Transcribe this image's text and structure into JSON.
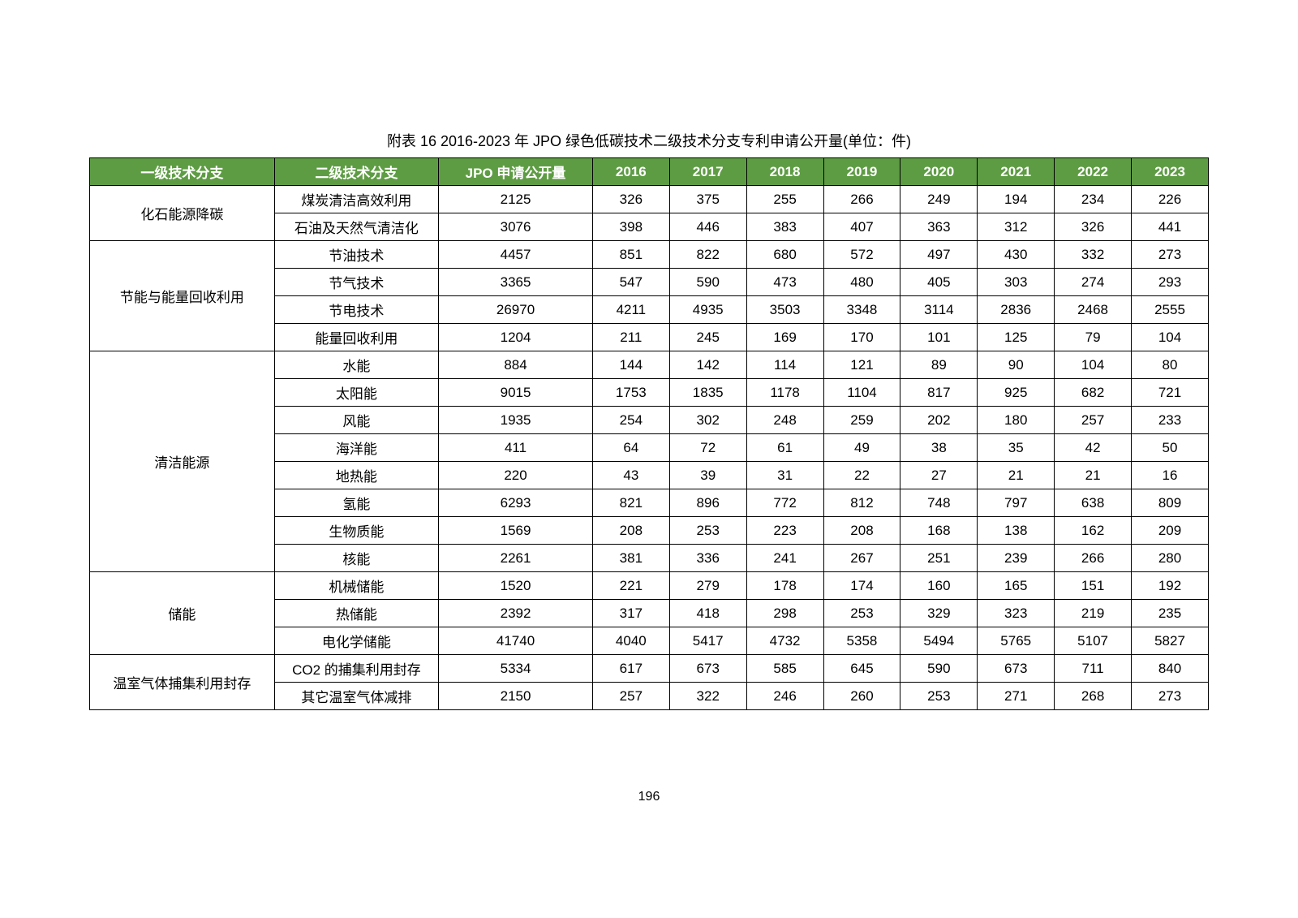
{
  "caption": "附表 16 2016-2023 年 JPO 绿色低碳技术二级技术分支专利申请公开量(单位：件)",
  "page_number": "196",
  "header_bg": "#5e9c44",
  "header_color": "#ffffff",
  "columns": [
    "一级技术分支",
    "二级技术分支",
    "JPO 申请公开量",
    "2016",
    "2017",
    "2018",
    "2019",
    "2020",
    "2021",
    "2022",
    "2023"
  ],
  "groups": [
    {
      "level1": "化石能源降碳",
      "rows": [
        {
          "level2": "煤炭清洁高效利用",
          "total": "2125",
          "values": [
            "326",
            "375",
            "255",
            "266",
            "249",
            "194",
            "234",
            "226"
          ]
        },
        {
          "level2": "石油及天然气清洁化",
          "total": "3076",
          "values": [
            "398",
            "446",
            "383",
            "407",
            "363",
            "312",
            "326",
            "441"
          ]
        }
      ]
    },
    {
      "level1": "节能与能量回收利用",
      "rows": [
        {
          "level2": "节油技术",
          "total": "4457",
          "values": [
            "851",
            "822",
            "680",
            "572",
            "497",
            "430",
            "332",
            "273"
          ]
        },
        {
          "level2": "节气技术",
          "total": "3365",
          "values": [
            "547",
            "590",
            "473",
            "480",
            "405",
            "303",
            "274",
            "293"
          ]
        },
        {
          "level2": "节电技术",
          "total": "26970",
          "values": [
            "4211",
            "4935",
            "3503",
            "3348",
            "3114",
            "2836",
            "2468",
            "2555"
          ]
        },
        {
          "level2": "能量回收利用",
          "total": "1204",
          "values": [
            "211",
            "245",
            "169",
            "170",
            "101",
            "125",
            "79",
            "104"
          ]
        }
      ]
    },
    {
      "level1": "清洁能源",
      "rows": [
        {
          "level2": "水能",
          "total": "884",
          "values": [
            "144",
            "142",
            "114",
            "121",
            "89",
            "90",
            "104",
            "80"
          ]
        },
        {
          "level2": "太阳能",
          "total": "9015",
          "values": [
            "1753",
            "1835",
            "1178",
            "1104",
            "817",
            "925",
            "682",
            "721"
          ]
        },
        {
          "level2": "风能",
          "total": "1935",
          "values": [
            "254",
            "302",
            "248",
            "259",
            "202",
            "180",
            "257",
            "233"
          ]
        },
        {
          "level2": "海洋能",
          "total": "411",
          "values": [
            "64",
            "72",
            "61",
            "49",
            "38",
            "35",
            "42",
            "50"
          ]
        },
        {
          "level2": "地热能",
          "total": "220",
          "values": [
            "43",
            "39",
            "31",
            "22",
            "27",
            "21",
            "21",
            "16"
          ]
        },
        {
          "level2": "氢能",
          "total": "6293",
          "values": [
            "821",
            "896",
            "772",
            "812",
            "748",
            "797",
            "638",
            "809"
          ]
        },
        {
          "level2": "生物质能",
          "total": "1569",
          "values": [
            "208",
            "253",
            "223",
            "208",
            "168",
            "138",
            "162",
            "209"
          ]
        },
        {
          "level2": "核能",
          "total": "2261",
          "values": [
            "381",
            "336",
            "241",
            "267",
            "251",
            "239",
            "266",
            "280"
          ]
        }
      ]
    },
    {
      "level1": "储能",
      "rows": [
        {
          "level2": "机械储能",
          "total": "1520",
          "values": [
            "221",
            "279",
            "178",
            "174",
            "160",
            "165",
            "151",
            "192"
          ]
        },
        {
          "level2": "热储能",
          "total": "2392",
          "values": [
            "317",
            "418",
            "298",
            "253",
            "329",
            "323",
            "219",
            "235"
          ]
        },
        {
          "level2": "电化学储能",
          "total": "41740",
          "values": [
            "4040",
            "5417",
            "4732",
            "5358",
            "5494",
            "5765",
            "5107",
            "5827"
          ]
        }
      ]
    },
    {
      "level1": "温室气体捕集利用封存",
      "rows": [
        {
          "level2": "CO2 的捕集利用封存",
          "total": "5334",
          "values": [
            "617",
            "673",
            "585",
            "645",
            "590",
            "673",
            "711",
            "840"
          ]
        },
        {
          "level2": "其它温室气体减排",
          "total": "2150",
          "values": [
            "257",
            "322",
            "246",
            "260",
            "253",
            "271",
            "268",
            "273"
          ]
        }
      ]
    }
  ]
}
